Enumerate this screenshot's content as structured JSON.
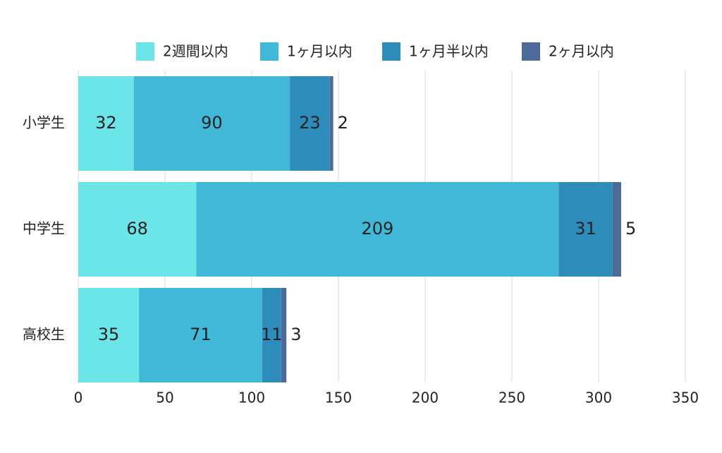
{
  "chart_data": {
    "type": "stacked-barh",
    "categories": [
      "小学生",
      "中学生",
      "高校生"
    ],
    "series": [
      {
        "name": "2週間以内",
        "color": "#6ce5e8",
        "values": [
          32,
          68,
          35
        ]
      },
      {
        "name": "1ヶ月以内",
        "color": "#42b8d8",
        "values": [
          90,
          209,
          71
        ]
      },
      {
        "name": "1ヶ月半以内",
        "color": "#2e8cbb",
        "values": [
          23,
          31,
          11
        ]
      },
      {
        "name": "2ヶ月以内",
        "color": "#4e6a98",
        "values": [
          2,
          5,
          3
        ]
      }
    ],
    "xlim": [
      0,
      350
    ],
    "xticks": [
      0,
      50,
      100,
      150,
      200,
      250,
      300,
      350
    ],
    "grid": true
  }
}
